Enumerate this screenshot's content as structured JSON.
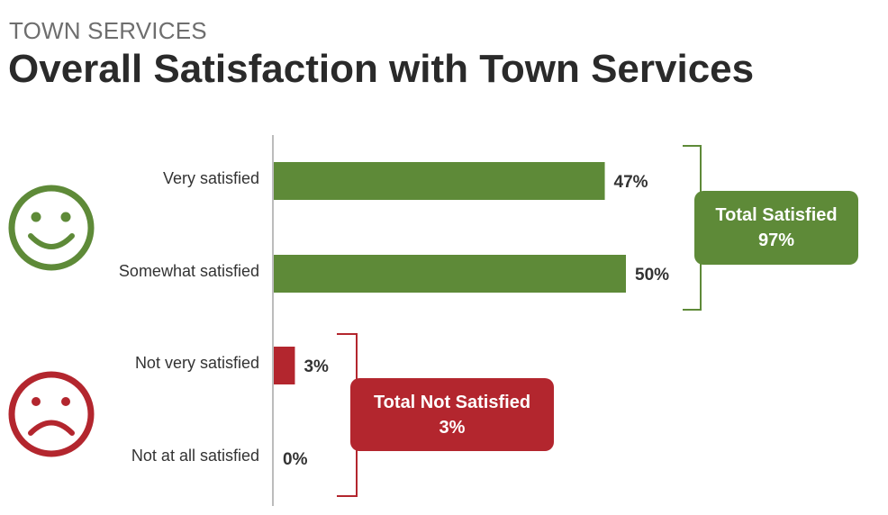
{
  "header": {
    "eyebrow": "TOWN SERVICES",
    "title": "Overall Satisfaction with Town Services"
  },
  "colors": {
    "satisfied": "#5e8a38",
    "not_satisfied": "#b3262e",
    "axis": "#a6a6a6",
    "text": "#333333"
  },
  "icons": {
    "satisfied": "smiley-face-icon",
    "not_satisfied": "frowning-face-icon"
  },
  "summary": {
    "satisfied": {
      "label": "Total Satisfied",
      "value": "97%"
    },
    "not_satisfied": {
      "label": "Total Not Satisfied",
      "value": "3%"
    }
  },
  "chart_data": {
    "type": "bar",
    "orientation": "horizontal",
    "title": "Overall Satisfaction with Town Services",
    "xlabel": "",
    "ylabel": "",
    "categories": [
      "Very satisfied",
      "Somewhat satisfied",
      "Not very satisfied",
      "Not at all satisfied"
    ],
    "values": [
      47,
      50,
      3,
      0
    ],
    "value_labels": [
      "47%",
      "50%",
      "3%",
      "0%"
    ],
    "groups": [
      "satisfied",
      "satisfied",
      "not_satisfied",
      "not_satisfied"
    ],
    "xlim": [
      0,
      50
    ],
    "grid": false,
    "legend": "none"
  }
}
